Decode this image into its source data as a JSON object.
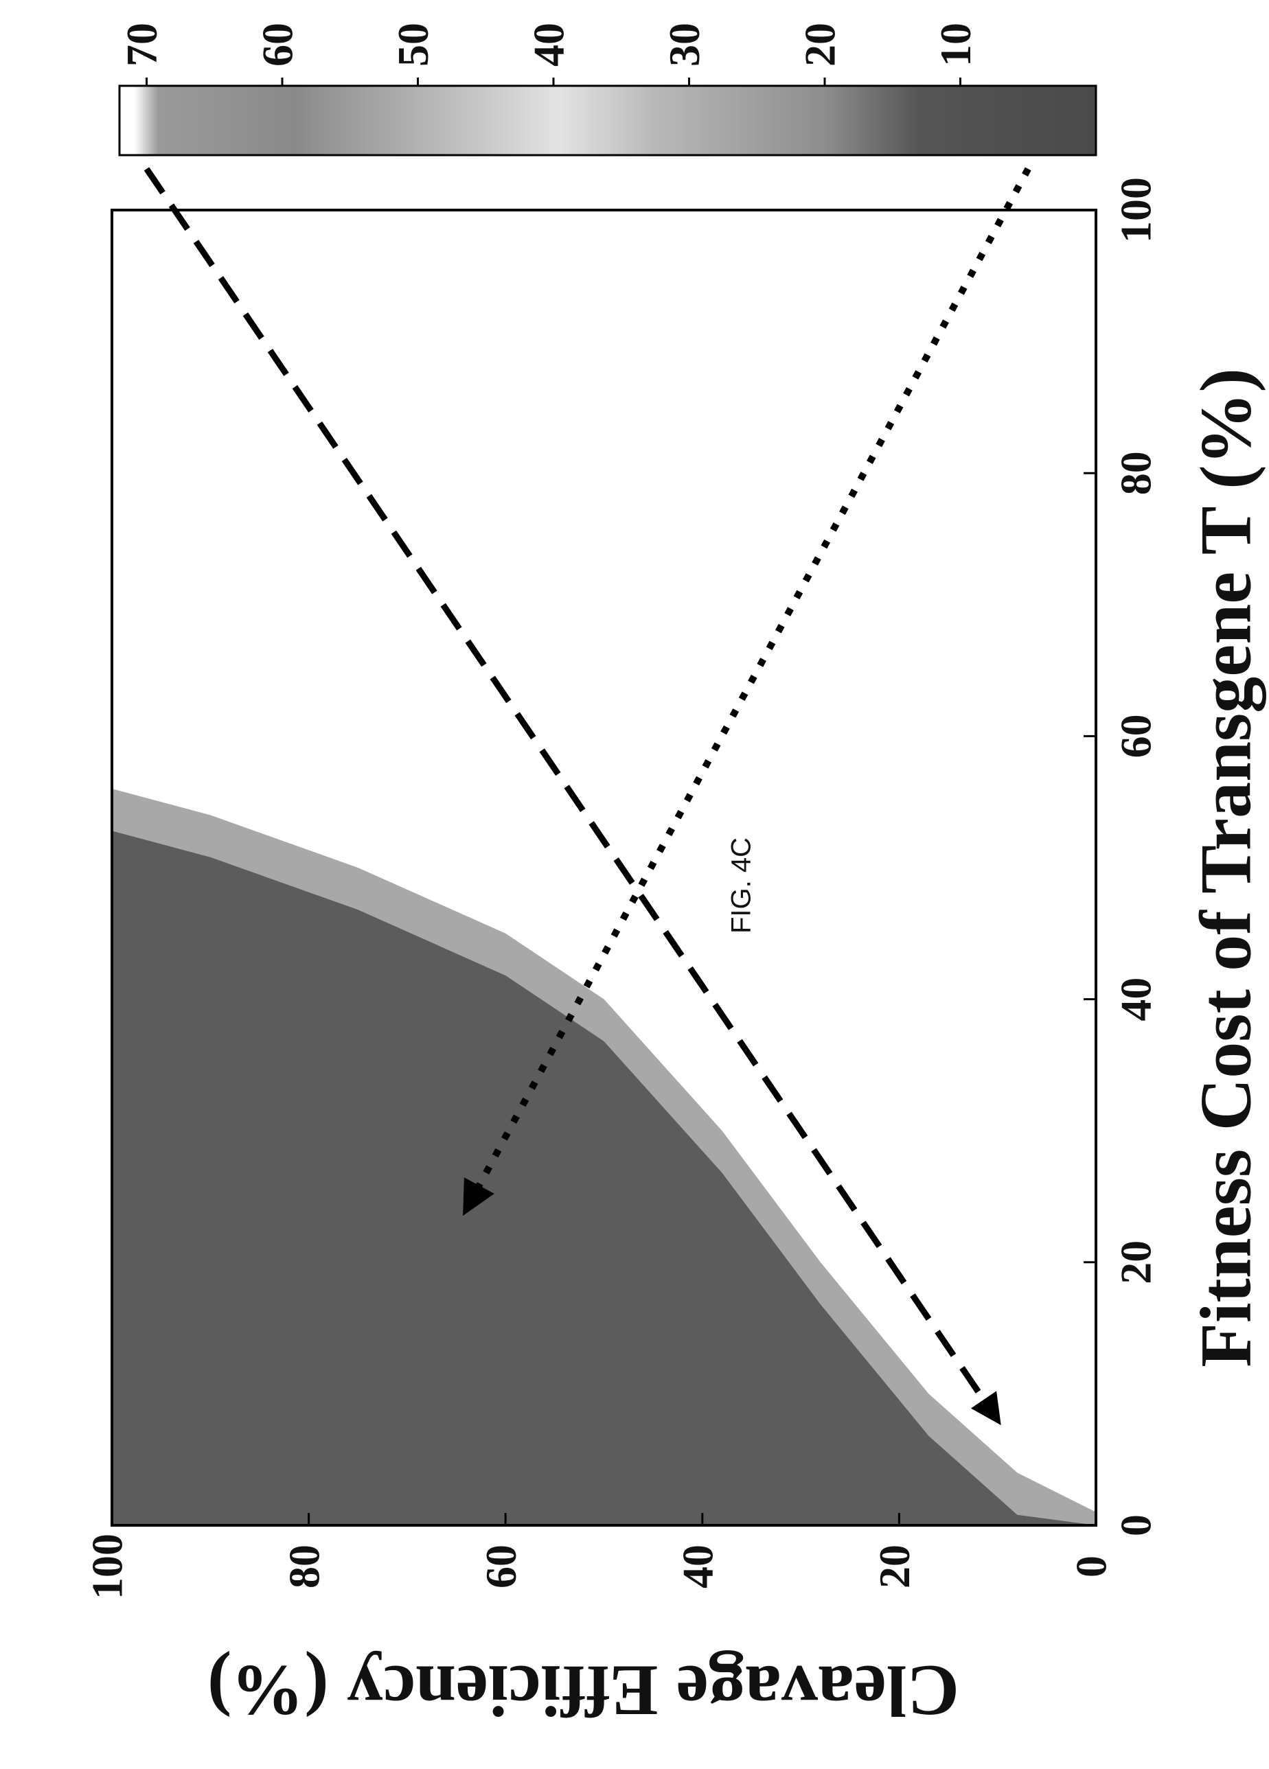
{
  "figure": {
    "label": "FIG. 4C"
  },
  "chart_data": {
    "type": "heatmap",
    "xlabel": "Fitness Cost of Transgene T (%)",
    "ylabel": "Cleavage Efficiency (%)",
    "xlim": [
      0,
      100
    ],
    "ylim": [
      0,
      100
    ],
    "x_ticks": [
      0,
      20,
      40,
      60,
      80,
      100
    ],
    "y_ticks": [
      0,
      20,
      40,
      60,
      80,
      100
    ],
    "colorbar": {
      "range": [
        0,
        72
      ],
      "ticks": [
        10,
        20,
        30,
        40,
        50,
        60,
        70
      ],
      "colormap": "grayscale (dark low, light mid, dark high)"
    },
    "region_boundary": {
      "description": "shaded region to the left of curve; white elsewhere",
      "points": [
        [
          1,
          0
        ],
        [
          4,
          8
        ],
        [
          10,
          17
        ],
        [
          20,
          28
        ],
        [
          30,
          38
        ],
        [
          40,
          50
        ],
        [
          45,
          60
        ],
        [
          50,
          75
        ],
        [
          54,
          90
        ],
        [
          56,
          100
        ]
      ]
    },
    "arrows": [
      {
        "style": "dashed",
        "from_colorbar": 70,
        "to": [
          8,
          10
        ]
      },
      {
        "style": "dotted",
        "from_colorbar": 5,
        "to": [
          24,
          64
        ]
      }
    ]
  },
  "colors": {
    "fill_dark": "#5c5c5c",
    "fill_edge": "#9a9a9a",
    "frame": "#000000"
  }
}
